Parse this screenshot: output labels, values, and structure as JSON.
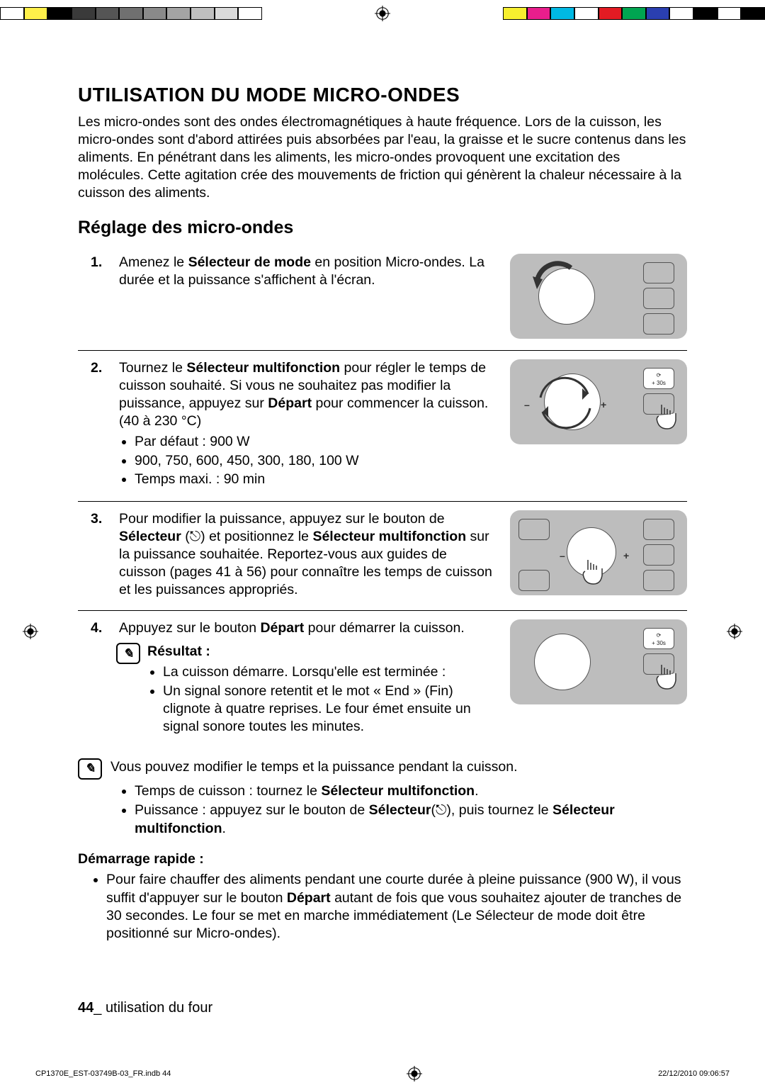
{
  "colorbar_left": [
    "#ffffff",
    "#fff04a",
    "#000000",
    "#3a3a3a",
    "#555555",
    "#707070",
    "#8a8a8a",
    "#a4a4a4",
    "#bfbfbf",
    "#dadada",
    "#ffffff"
  ],
  "colorbar_right": [
    "#f7ef2f",
    "#e91e8c",
    "#00b9e4",
    "#ffffff",
    "#e31b23",
    "#00a551",
    "#2a3fb0",
    "#ffffff",
    "#000000",
    "#ffffff",
    "#000000"
  ],
  "title": "UTILISATION DU MODE MICRO-ONDES",
  "intro": "Les micro-ondes sont des ondes électromagnétiques à haute fréquence. Lors de la cuisson, les micro-ondes sont d'abord attirées puis absorbées par l'eau, la graisse et le sucre contenus dans les aliments. En pénétrant dans les aliments, les micro-ondes provoquent une excitation des molécules. Cette agitation crée des mouvements de friction qui génèrent la chaleur nécessaire à la cuisson des aliments.",
  "subtitle": "Réglage des micro-ondes",
  "steps": {
    "s1": {
      "num": "1.",
      "pre": "Amenez le ",
      "bold1": "Sélecteur de mode",
      "post": " en position Micro-ondes. La durée et la puissance s'affichent à l'écran."
    },
    "s2": {
      "num": "2.",
      "pre": "Tournez le ",
      "bold1": "Sélecteur multifonction",
      "mid1": " pour régler le temps de cuisson souhaité. Si vous ne souhaitez pas modifier la puissance, appuyez sur ",
      "bold2": "Départ",
      "post": " pour commencer la cuisson. (40 à 230 °C)",
      "b1": "Par défaut : 900 W",
      "b2": "900, 750, 600, 450, 300, 180, 100 W",
      "b3": "Temps maxi. : 90 min"
    },
    "s3": {
      "num": "3.",
      "pre": "Pour modifier la puissance, appuyez sur le bouton de ",
      "bold1": "Sélecteur",
      "mid1": " (",
      "mid2": ") et positionnez le ",
      "bold2": "Sélecteur multifonction",
      "post": " sur la puissance souhaitée. Reportez-vous aux guides de cuisson (pages 41 à 56) pour connaître les temps de cuisson et les puissances appropriés."
    },
    "s4": {
      "num": "4.",
      "pre": "Appuyez sur le bouton ",
      "bold1": "Départ",
      "post": " pour démarrer la cuisson.",
      "result_label": "Résultat :",
      "r1": "La cuisson démarre. Lorsqu'elle est terminée :",
      "r2": "Un signal sonore retentit et le mot « End » (Fin) clignote à quatre reprises. Le four émet ensuite un signal sonore toutes les minutes."
    }
  },
  "note": {
    "line": "Vous pouvez modifier le temps et la puissance pendant la cuisson.",
    "b1_pre": "Temps de cuisson : tournez le ",
    "b1_bold": "Sélecteur multifonction",
    "b1_post": ".",
    "b2_pre": "Puissance : appuyez sur le bouton de ",
    "b2_bold1": "Sélecteur",
    "b2_mid": "(",
    "b2_mid2": "), puis tournez le ",
    "b2_bold2": "Sélecteur multifonction",
    "b2_post": "."
  },
  "quick": {
    "heading": "Démarrage rapide :",
    "text_pre": "Pour faire chauffer des aliments pendant une courte durée à pleine puissance (900 W), il vous suffit d'appuyer sur le bouton ",
    "text_bold": "Départ",
    "text_post": " autant de fois que vous souhaitez ajouter de tranches de 30 secondes. Le four se met en marche immédiatement (Le Sélecteur de mode doit être positionné sur Micro-ondes)."
  },
  "footer": {
    "page_num": "44",
    "sep": "_ ",
    "label": "utilisation du four"
  },
  "print": {
    "left": "CP1370E_EST-03749B-03_FR.indb   44",
    "right": "22/12/2010   09:06:57"
  },
  "btn_label_30s_top": "⟳",
  "btn_label_30s_bot": "+ 30s",
  "icon_glyph": "✎"
}
